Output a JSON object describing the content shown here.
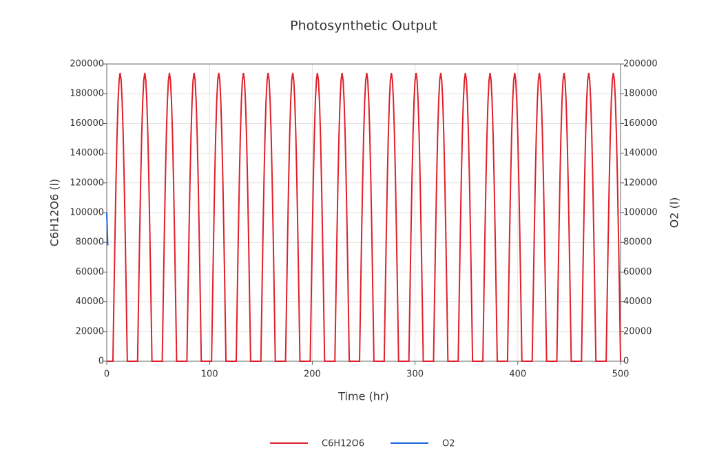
{
  "chart_data": {
    "type": "line",
    "title": "Photosynthetic Output",
    "x_label": "Time (hr)",
    "y_label": "C6H12O6 (l)",
    "y2_label": "O2 (l)",
    "xlim": [
      0,
      500
    ],
    "xticks": [
      0,
      100,
      200,
      300,
      400,
      500
    ],
    "ylim": [
      0,
      200000
    ],
    "yticks": [
      0,
      20000,
      40000,
      60000,
      80000,
      100000,
      120000,
      140000,
      160000,
      180000,
      200000
    ],
    "y2lim": [
      0,
      200000
    ],
    "y2ticks": [
      0,
      20000,
      40000,
      60000,
      80000,
      100000,
      120000,
      140000,
      160000,
      180000,
      200000
    ],
    "grid": true,
    "legend": "bottom",
    "series": [
      {
        "name": "C6H12O6",
        "color": "#e0202a",
        "x": [
          0,
          6,
          7,
          8,
          9,
          10,
          11,
          12,
          13,
          14,
          15,
          16,
          17,
          18,
          19,
          20,
          30,
          31,
          32,
          33,
          34,
          35,
          36,
          37,
          38,
          39,
          40,
          41,
          42,
          43,
          44,
          54,
          55,
          56,
          57,
          58,
          59,
          60,
          61,
          62,
          63,
          64,
          65,
          66,
          67,
          68,
          78,
          79,
          80,
          81,
          82,
          83,
          84,
          85,
          86,
          87,
          88,
          89,
          90,
          91,
          92,
          102,
          103,
          104,
          105,
          106,
          107,
          108,
          109,
          110,
          111,
          112,
          113,
          114,
          115,
          116,
          126,
          127,
          128,
          129,
          130,
          131,
          132,
          133,
          134,
          135,
          136,
          137,
          138,
          139,
          140,
          150,
          151,
          152,
          153,
          154,
          155,
          156,
          157,
          158,
          159,
          160,
          161,
          162,
          163,
          164,
          174,
          175,
          176,
          177,
          178,
          179,
          180,
          181,
          182,
          183,
          184,
          185,
          186,
          187,
          188,
          198,
          199,
          200,
          201,
          202,
          203,
          204,
          205,
          206,
          207,
          208,
          209,
          210,
          211,
          212,
          222,
          223,
          224,
          225,
          226,
          227,
          228,
          229,
          230,
          231,
          232,
          233,
          234,
          235,
          236,
          246,
          247,
          248,
          249,
          250,
          251,
          252,
          253,
          254,
          255,
          256,
          257,
          258,
          259,
          260,
          270,
          271,
          272,
          273,
          274,
          275,
          276,
          277,
          278,
          279,
          280,
          281,
          282,
          283,
          284,
          294,
          295,
          296,
          297,
          298,
          299,
          300,
          301,
          302,
          303,
          304,
          305,
          306,
          307,
          308,
          318,
          319,
          320,
          321,
          322,
          323,
          324,
          325,
          326,
          327,
          328,
          329,
          330,
          331,
          332,
          342,
          343,
          344,
          345,
          346,
          347,
          348,
          349,
          350,
          351,
          352,
          353,
          354,
          355,
          356,
          366,
          367,
          368,
          369,
          370,
          371,
          372,
          373,
          374,
          375,
          376,
          377,
          378,
          379,
          380,
          390,
          391,
          392,
          393,
          394,
          395,
          396,
          397,
          398,
          399,
          400,
          401,
          402,
          403,
          404,
          414,
          415,
          416,
          417,
          418,
          419,
          420,
          421,
          422,
          423,
          424,
          425,
          426,
          427,
          428,
          438,
          439,
          440,
          441,
          442,
          443,
          444,
          445,
          446,
          447,
          448,
          449,
          450,
          451,
          452,
          462,
          463,
          464,
          465,
          466,
          467,
          468,
          469,
          470,
          471,
          472,
          473,
          474,
          475,
          476,
          486,
          487,
          488,
          489,
          490,
          491,
          492,
          493,
          494,
          495,
          496,
          497,
          498,
          499,
          500
        ],
        "values": [
          0,
          0,
          43000,
          84000,
          121000,
          152000,
          175000,
          189000,
          194000,
          189000,
          175000,
          152000,
          121000,
          84000,
          43000,
          0,
          0,
          43000,
          84000,
          121000,
          152000,
          175000,
          189000,
          194000,
          189000,
          175000,
          152000,
          121000,
          84000,
          43000,
          0,
          0,
          43000,
          84000,
          121000,
          152000,
          175000,
          189000,
          194000,
          189000,
          175000,
          152000,
          121000,
          84000,
          43000,
          0,
          0,
          43000,
          84000,
          121000,
          152000,
          175000,
          189000,
          194000,
          189000,
          175000,
          152000,
          121000,
          84000,
          43000,
          0,
          0,
          43000,
          84000,
          121000,
          152000,
          175000,
          189000,
          194000,
          189000,
          175000,
          152000,
          121000,
          84000,
          43000,
          0,
          0,
          43000,
          84000,
          121000,
          152000,
          175000,
          189000,
          194000,
          189000,
          175000,
          152000,
          121000,
          84000,
          43000,
          0,
          0,
          43000,
          84000,
          121000,
          152000,
          175000,
          189000,
          194000,
          189000,
          175000,
          152000,
          121000,
          84000,
          43000,
          0,
          0,
          43000,
          84000,
          121000,
          152000,
          175000,
          189000,
          194000,
          189000,
          175000,
          152000,
          121000,
          84000,
          43000,
          0,
          0,
          43000,
          84000,
          121000,
          152000,
          175000,
          189000,
          194000,
          189000,
          175000,
          152000,
          121000,
          84000,
          43000,
          0,
          0,
          43000,
          84000,
          121000,
          152000,
          175000,
          189000,
          194000,
          189000,
          175000,
          152000,
          121000,
          84000,
          43000,
          0,
          0,
          43000,
          84000,
          121000,
          152000,
          175000,
          189000,
          194000,
          189000,
          175000,
          152000,
          121000,
          84000,
          43000,
          0,
          0,
          43000,
          84000,
          121000,
          152000,
          175000,
          189000,
          194000,
          189000,
          175000,
          152000,
          121000,
          84000,
          43000,
          0,
          0,
          43000,
          84000,
          121000,
          152000,
          175000,
          189000,
          194000,
          189000,
          175000,
          152000,
          121000,
          84000,
          43000,
          0,
          0,
          43000,
          84000,
          121000,
          152000,
          175000,
          189000,
          194000,
          189000,
          175000,
          152000,
          121000,
          84000,
          43000,
          0,
          0,
          43000,
          84000,
          121000,
          152000,
          175000,
          189000,
          194000,
          189000,
          175000,
          152000,
          121000,
          84000,
          43000,
          0,
          0,
          43000,
          84000,
          121000,
          152000,
          175000,
          189000,
          194000,
          189000,
          175000,
          152000,
          121000,
          84000,
          43000,
          0,
          0,
          43000,
          84000,
          121000,
          152000,
          175000,
          189000,
          194000,
          189000,
          175000,
          152000,
          121000,
          84000,
          43000,
          0,
          0,
          43000,
          84000,
          121000,
          152000,
          175000,
          189000,
          194000,
          189000,
          175000,
          152000,
          121000,
          84000,
          43000,
          0,
          0,
          43000,
          84000,
          121000,
          152000,
          175000,
          189000,
          194000,
          189000,
          175000,
          152000,
          121000,
          84000,
          43000,
          0,
          0,
          43000,
          84000,
          121000,
          152000,
          175000,
          189000,
          194000,
          189000,
          175000,
          152000,
          121000,
          84000,
          43000,
          0,
          0,
          43000,
          84000,
          121000,
          152000,
          175000,
          189000,
          194000,
          189000,
          175000,
          152000,
          121000,
          84000,
          43000,
          0
        ]
      },
      {
        "name": "O2",
        "color": "#1565e0",
        "axis": "y2",
        "x": [
          0,
          1
        ],
        "values": [
          100000,
          78000
        ]
      }
    ]
  }
}
